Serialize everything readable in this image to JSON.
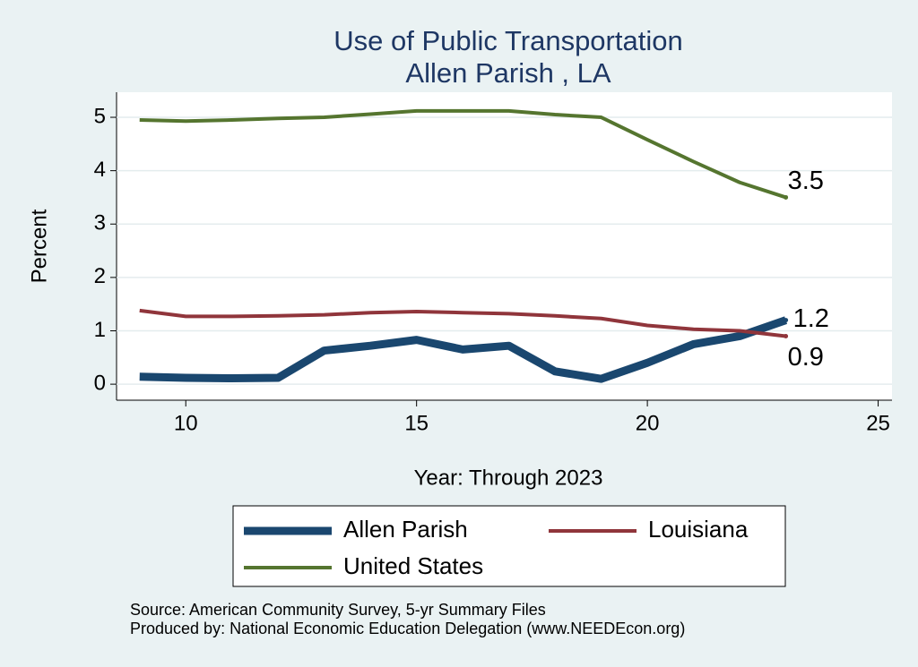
{
  "chart_data": {
    "type": "line",
    "title": "Use of Public Transportation",
    "subtitle": "Allen Parish , LA",
    "x_label": "Year: Through 2023",
    "y_label": "Percent",
    "x": [
      9,
      10,
      11,
      12,
      13,
      14,
      15,
      16,
      17,
      18,
      19,
      20,
      21,
      22,
      23
    ],
    "series": [
      {
        "name": "Allen Parish",
        "color": "#1a476f",
        "values": [
          0.14,
          0.12,
          0.11,
          0.12,
          0.63,
          0.72,
          0.83,
          0.65,
          0.72,
          0.24,
          0.1,
          0.4,
          0.75,
          0.9,
          1.2
        ]
      },
      {
        "name": "Louisiana",
        "color": "#90353b",
        "values": [
          1.38,
          1.27,
          1.27,
          1.28,
          1.3,
          1.34,
          1.36,
          1.34,
          1.32,
          1.28,
          1.23,
          1.1,
          1.03,
          1.0,
          0.9
        ]
      },
      {
        "name": "United States",
        "color": "#55752f",
        "values": [
          4.95,
          4.93,
          4.95,
          4.98,
          5.0,
          5.06,
          5.12,
          5.12,
          5.12,
          5.05,
          5.0,
          4.58,
          4.17,
          3.78,
          3.5
        ]
      }
    ],
    "xlim": [
      8.5,
      25.3
    ],
    "xticks": [
      10,
      15,
      20,
      25
    ],
    "ylim": [
      -0.3,
      5.47
    ],
    "yticks": [
      0,
      1,
      2,
      3,
      4,
      5
    ],
    "grid": true,
    "source": "Source: American Community Survey, 5-yr Summary Files",
    "producer": "Produced by: National Economic Education Delegation (www.NEEDEcon.org)"
  }
}
